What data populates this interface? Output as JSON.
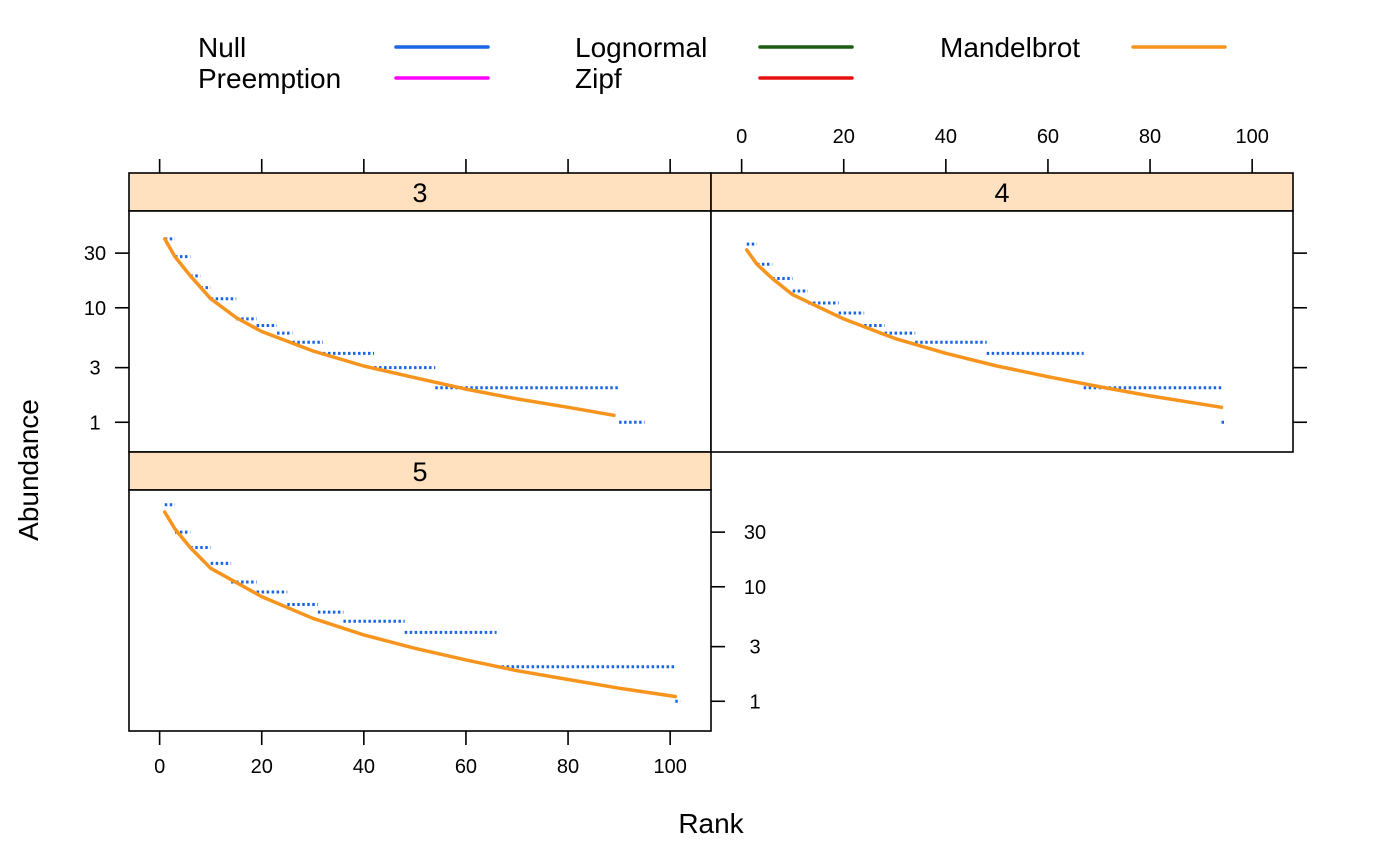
{
  "chart_data": {
    "type": "line",
    "layout": "lattice-3-panels",
    "xlabel": "Rank",
    "ylabel": "Abundance",
    "xlim": [
      -6,
      108
    ],
    "x_ticks": [
      0,
      20,
      40,
      60,
      80,
      100
    ],
    "y_scale": "log",
    "ylim": [
      0.55,
      70
    ],
    "y_ticks": [
      1,
      3,
      10,
      30
    ],
    "legend": {
      "placement": "top",
      "entries": [
        {
          "name": "Null",
          "color": "#1a64e6"
        },
        {
          "name": "Preemption",
          "color": "#ff00ff"
        },
        {
          "name": "Lognormal",
          "color": "#1a5c10"
        },
        {
          "name": "Zipf",
          "color": "#e61010"
        },
        {
          "name": "Mandelbrot",
          "color": "#f7941d"
        }
      ]
    },
    "colors": {
      "strip": "#ffe0bf",
      "observed": "#1a64e6",
      "fitted": "#f7941d"
    },
    "panels": [
      {
        "label": "3",
        "observed_steps": [
          [
            1,
            3,
            40
          ],
          [
            3,
            6,
            28
          ],
          [
            6,
            8,
            19
          ],
          [
            8,
            10,
            15
          ],
          [
            10,
            15,
            12
          ],
          [
            15,
            19,
            8
          ],
          [
            19,
            23,
            7
          ],
          [
            23,
            26,
            6
          ],
          [
            26,
            32,
            5
          ],
          [
            32,
            42,
            4
          ],
          [
            42,
            54,
            3
          ],
          [
            54,
            90,
            2
          ],
          [
            90,
            95,
            1
          ]
        ],
        "fitted_curve": [
          [
            1,
            40
          ],
          [
            3,
            28
          ],
          [
            6,
            19
          ],
          [
            10,
            12
          ],
          [
            15,
            8.2
          ],
          [
            20,
            6.2
          ],
          [
            30,
            4.2
          ],
          [
            40,
            3.1
          ],
          [
            50,
            2.45
          ],
          [
            60,
            1.95
          ],
          [
            70,
            1.6
          ],
          [
            80,
            1.35
          ],
          [
            89,
            1.15
          ]
        ]
      },
      {
        "label": "4",
        "observed_steps": [
          [
            1,
            3,
            36
          ],
          [
            3,
            6,
            24
          ],
          [
            6,
            10,
            18
          ],
          [
            10,
            13,
            14
          ],
          [
            13,
            19,
            11
          ],
          [
            19,
            24,
            9
          ],
          [
            24,
            28,
            7
          ],
          [
            28,
            34,
            6
          ],
          [
            34,
            48,
            5
          ],
          [
            48,
            67,
            4
          ],
          [
            67,
            94,
            2
          ],
          [
            94,
            95,
            1
          ]
        ],
        "fitted_curve": [
          [
            1,
            32
          ],
          [
            3,
            24
          ],
          [
            6,
            18
          ],
          [
            10,
            13
          ],
          [
            20,
            8
          ],
          [
            30,
            5.4
          ],
          [
            40,
            4.0
          ],
          [
            50,
            3.1
          ],
          [
            60,
            2.5
          ],
          [
            70,
            2.05
          ],
          [
            80,
            1.7
          ],
          [
            94,
            1.35
          ]
        ]
      },
      {
        "label": "5",
        "observed_steps": [
          [
            1,
            3,
            52
          ],
          [
            3,
            6,
            30
          ],
          [
            6,
            10,
            22
          ],
          [
            10,
            14,
            16
          ],
          [
            14,
            19,
            11
          ],
          [
            19,
            25,
            9
          ],
          [
            25,
            31,
            7
          ],
          [
            31,
            36,
            6
          ],
          [
            36,
            48,
            5
          ],
          [
            48,
            66,
            4
          ],
          [
            66,
            101,
            2
          ],
          [
            101,
            102,
            1
          ]
        ],
        "fitted_curve": [
          [
            1,
            45
          ],
          [
            3,
            32
          ],
          [
            6,
            22
          ],
          [
            10,
            14.5
          ],
          [
            20,
            8.2
          ],
          [
            30,
            5.3
          ],
          [
            40,
            3.8
          ],
          [
            50,
            2.9
          ],
          [
            60,
            2.3
          ],
          [
            70,
            1.85
          ],
          [
            80,
            1.55
          ],
          [
            90,
            1.3
          ],
          [
            101,
            1.1
          ]
        ]
      }
    ]
  }
}
